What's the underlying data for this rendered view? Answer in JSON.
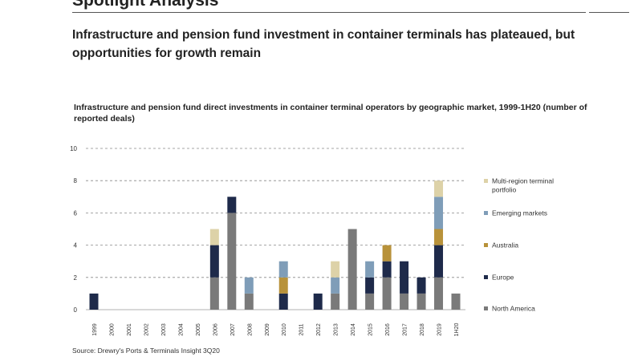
{
  "header": {
    "section_title": "Spotlight Analysis",
    "headline": "Infrastructure and pension fund investment in container terminals has plateaued, but opportunities for growth remain"
  },
  "chart_data": {
    "type": "bar",
    "stacked": true,
    "title": "Infrastructure and pension fund direct investments in container terminal operators by geographic market, 1999-1H20 (number of reported deals)",
    "xlabel": "",
    "ylabel": "",
    "ylim": [
      0,
      10
    ],
    "yticks": [
      0,
      2,
      4,
      6,
      8,
      10
    ],
    "grid": true,
    "legend_position": "right",
    "categories": [
      "1999",
      "2000",
      "2001",
      "2002",
      "2003",
      "2004",
      "2005",
      "2006",
      "2007",
      "2008",
      "2009",
      "2010",
      "2011",
      "2012",
      "2013",
      "2014",
      "2015",
      "2016",
      "2017",
      "2018",
      "2019",
      "1H20"
    ],
    "series": [
      {
        "name": "North America",
        "color": "#7a7a7a",
        "values": [
          0,
          0,
          0,
          0,
          0,
          0,
          0,
          2,
          6,
          1,
          0,
          0,
          0,
          0,
          1,
          5,
          1,
          2,
          1,
          1,
          2,
          1
        ]
      },
      {
        "name": "Europe",
        "color": "#1e2a4a",
        "values": [
          1,
          0,
          0,
          0,
          0,
          0,
          0,
          2,
          1,
          0,
          0,
          1,
          0,
          1,
          0,
          0,
          1,
          1,
          2,
          1,
          2,
          0
        ]
      },
      {
        "name": "Australia",
        "color": "#b8923a",
        "values": [
          0,
          0,
          0,
          0,
          0,
          0,
          0,
          0,
          0,
          0,
          0,
          1,
          0,
          0,
          0,
          0,
          0,
          1,
          0,
          0,
          1,
          0
        ]
      },
      {
        "name": "Emerging markets",
        "color": "#7f9db8",
        "values": [
          0,
          0,
          0,
          0,
          0,
          0,
          0,
          0,
          0,
          1,
          0,
          1,
          0,
          0,
          1,
          0,
          1,
          0,
          0,
          0,
          2,
          0
        ]
      },
      {
        "name": "Multi-region terminal portfolio",
        "color": "#ddd2a8",
        "values": [
          0,
          0,
          0,
          0,
          0,
          0,
          0,
          1,
          0,
          0,
          0,
          0,
          0,
          0,
          1,
          0,
          0,
          0,
          0,
          0,
          1,
          0
        ]
      }
    ]
  },
  "footer": {
    "source": "Source: Drewry's Ports & Terminals Insight 3Q20"
  }
}
